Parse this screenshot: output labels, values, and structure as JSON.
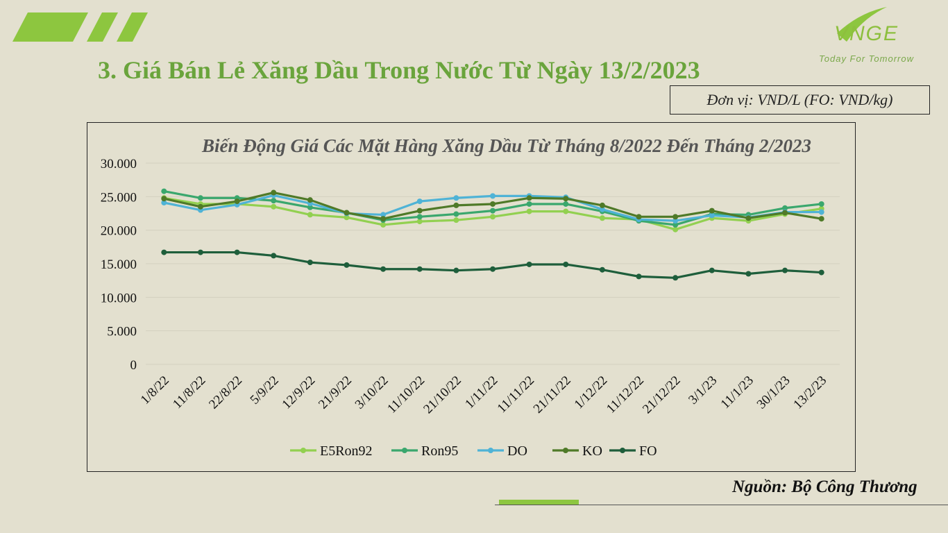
{
  "slide": {
    "title": "3. Giá Bán Lẻ Xăng Dầu Trong Nước Từ Ngày 13/2/2023",
    "unit": "Đơn vị: VND/L (FO: VND/kg)",
    "source": "Nguồn: Bộ Công Thương",
    "logo_text": "VNGE",
    "logo_tagline": "Today For Tomorrow",
    "colors": {
      "background": "#e3e0cf",
      "accent": "#8dc63f",
      "title": "#6aa43c"
    }
  },
  "chart_data": {
    "type": "line",
    "title": "Biến Động Giá Các Mặt Hàng Xăng Dầu Từ Tháng 8/2022 Đến Tháng 2/2023",
    "xlabel": "",
    "ylabel": "",
    "ylim": [
      0,
      30000
    ],
    "yticks": [
      0,
      5000,
      10000,
      15000,
      20000,
      25000,
      30000
    ],
    "ytick_labels": [
      "0",
      "5.000",
      "10.000",
      "15.000",
      "20.000",
      "25.000",
      "30.000"
    ],
    "grid": true,
    "legend_position": "bottom",
    "categories": [
      "1/8/22",
      "11/8/22",
      "22/8/22",
      "5/9/22",
      "12/9/22",
      "21/9/22",
      "3/10/22",
      "11/10/22",
      "21/10/22",
      "1/11/22",
      "11/11/22",
      "21/11/22",
      "1/12/22",
      "11/12/22",
      "21/12/22",
      "3/1/23",
      "11/1/23",
      "30/1/23",
      "13/2/23"
    ],
    "series": [
      {
        "name": "E5Ron92",
        "color": "#92d050",
        "values": [
          24800,
          23900,
          23900,
          23500,
          22300,
          21900,
          20800,
          21300,
          21500,
          22000,
          22800,
          22800,
          21800,
          21600,
          20100,
          21800,
          21400,
          22400,
          23200
        ]
      },
      {
        "name": "Ron95",
        "color": "#3aa76d",
        "values": [
          25800,
          24800,
          24800,
          24400,
          23400,
          22600,
          21500,
          22000,
          22400,
          22900,
          23900,
          23900,
          22800,
          21400,
          20800,
          22400,
          22300,
          23300,
          23900
        ]
      },
      {
        "name": "DO",
        "color": "#4fb3d6",
        "values": [
          24100,
          23000,
          23800,
          25200,
          24000,
          22500,
          22300,
          24300,
          24800,
          25100,
          25100,
          24900,
          23100,
          21600,
          21400,
          22200,
          21900,
          22700,
          22700
        ]
      },
      {
        "name": "KO",
        "color": "#4f7a28",
        "values": [
          24700,
          23500,
          24300,
          25600,
          24500,
          22600,
          21700,
          22900,
          23700,
          23900,
          24800,
          24700,
          23700,
          22000,
          22000,
          22900,
          21800,
          22600,
          21700
        ]
      },
      {
        "name": "FO",
        "color": "#1e5e3b",
        "values": [
          16700,
          16700,
          16700,
          16200,
          15200,
          14800,
          14200,
          14200,
          14000,
          14200,
          14900,
          14900,
          14100,
          13100,
          12900,
          14000,
          13500,
          14000,
          13700
        ]
      }
    ]
  }
}
